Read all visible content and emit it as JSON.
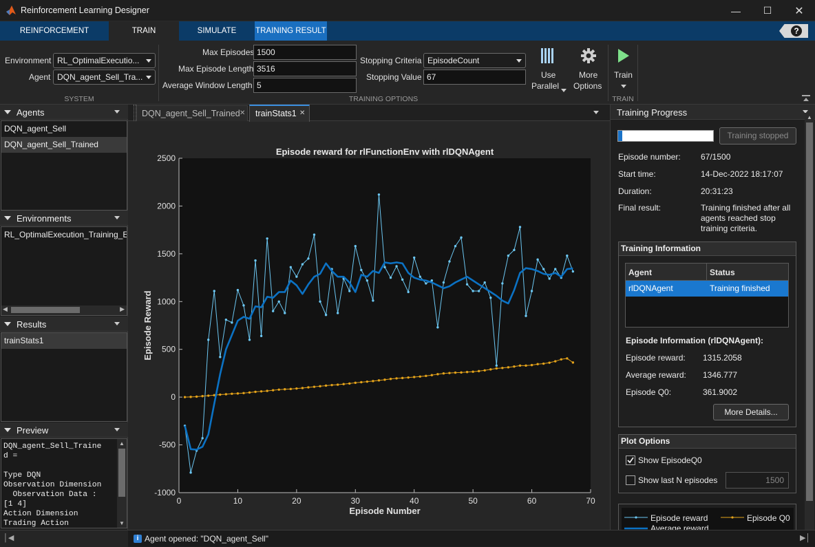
{
  "app": {
    "title": "Reinforcement Learning Designer"
  },
  "ribbon_tabs": [
    {
      "label": "REINFORCEMENT LEARNING"
    },
    {
      "label": "TRAIN"
    },
    {
      "label": "SIMULATE"
    },
    {
      "label": "TRAINING RESULT"
    }
  ],
  "system": {
    "environment_label": "Environment",
    "environment_value": "RL_OptimalExecutio...",
    "agent_label": "Agent",
    "agent_value": "DQN_agent_Sell_Tra...",
    "section_label": "SYSTEM"
  },
  "training_options": {
    "max_episodes_label": "Max Episodes",
    "max_episodes_value": "1500",
    "max_episode_length_label": "Max Episode Length",
    "max_episode_length_value": "3516",
    "avg_window_label": "Average Window Length",
    "avg_window_value": "5",
    "stopping_criteria_label": "Stopping Criteria",
    "stopping_criteria_value": "EpisodeCount",
    "stopping_value_label": "Stopping Value",
    "stopping_value_value": "67",
    "use_parallel_1": "Use",
    "use_parallel_2": "Parallel",
    "more_options_1": "More",
    "more_options_2": "Options",
    "section_label": "TRAINING OPTIONS"
  },
  "train_section": {
    "train_label": "Train",
    "section_label": "TRAIN"
  },
  "panels": {
    "agents": {
      "title": "Agents",
      "items": [
        "DQN_agent_Sell",
        "DQN_agent_Sell_Trained"
      ]
    },
    "environments": {
      "title": "Environments",
      "items": [
        "RL_OptimalExecution_Training_E"
      ]
    },
    "results": {
      "title": "Results",
      "items": [
        "trainStats1"
      ]
    },
    "preview": {
      "title": "Preview",
      "text": "DQN_agent_Sell_Traine\nd =\n\nType DQN\nObservation Dimension\n  Observation Data :\n[1 4]\nAction Dimension\nTrading Action"
    }
  },
  "doc_tabs": [
    {
      "label": "DQN_agent_Sell_Trained"
    },
    {
      "label": "trainStats1"
    }
  ],
  "status": {
    "text": "Agent opened: \"DQN_agent_Sell\""
  },
  "progress": {
    "title": "Training Progress",
    "progress_fraction": 0.045,
    "stopped_button": "Training stopped",
    "episode_number_label": "Episode number:",
    "episode_number_value": "67/1500",
    "start_time_label": "Start time:",
    "start_time_value": "14-Dec-2022 18:17:07",
    "duration_label": "Duration:",
    "duration_value": "20:31:23",
    "final_result_label": "Final result:",
    "final_result_lines": [
      "Training finished after all",
      "agents reached stop",
      "training criteria."
    ],
    "training_info_title": "Training Information",
    "table_headers": [
      "Agent",
      "Status"
    ],
    "table_rows": [
      [
        "rlDQNAgent",
        "Training finished"
      ]
    ],
    "episode_info_title": "Episode Information (rlDQNAgent):",
    "episode_reward_label": "Episode reward:",
    "episode_reward_value": "1315.2058",
    "average_reward_label": "Average reward:",
    "average_reward_value": "1346.777",
    "episode_q0_label": "Episode Q0:",
    "episode_q0_value": "361.9002",
    "more_details_button": "More Details...",
    "plot_options_title": "Plot Options",
    "show_q0_label": "Show EpisodeQ0",
    "show_q0_checked": true,
    "show_last_n_label": "Show last N episodes",
    "show_last_n_checked": false,
    "last_n_value": "1500"
  },
  "colors": {
    "accent": "#0b3b67",
    "tab_active": "#1a6fc0",
    "reward": "#6cc7f2",
    "average": "#0b72c4",
    "q0": "#e3a21a"
  },
  "chart_data": {
    "type": "line",
    "title": "Episode reward for rlFunctionEnv with rlDQNAgent",
    "xlabel": "Episode Number",
    "ylabel": "Episode Reward",
    "xlim": [
      0,
      70
    ],
    "ylim": [
      -1000,
      2500
    ],
    "xticks": [
      0,
      10,
      20,
      30,
      40,
      50,
      60,
      70
    ],
    "yticks": [
      -1000,
      -500,
      0,
      500,
      1000,
      1500,
      2000,
      2500
    ],
    "grid": false,
    "legend_position": "bottom",
    "x": [
      1,
      2,
      3,
      4,
      5,
      6,
      7,
      8,
      9,
      10,
      11,
      12,
      13,
      14,
      15,
      16,
      17,
      18,
      19,
      20,
      21,
      22,
      23,
      24,
      25,
      26,
      27,
      28,
      29,
      30,
      31,
      32,
      33,
      34,
      35,
      36,
      37,
      38,
      39,
      40,
      41,
      42,
      43,
      44,
      45,
      46,
      47,
      48,
      49,
      50,
      51,
      52,
      53,
      54,
      55,
      56,
      57,
      58,
      59,
      60,
      61,
      62,
      63,
      64,
      65,
      66,
      67
    ],
    "series": [
      {
        "name": "Episode reward",
        "values": [
          -300,
          -790,
          -560,
          -430,
          600,
          1110,
          420,
          810,
          780,
          1120,
          960,
          600,
          1430,
          640,
          1660,
          900,
          1000,
          880,
          1360,
          1260,
          1390,
          1450,
          1700,
          1000,
          860,
          1340,
          880,
          1240,
          1110,
          1580,
          1330,
          1220,
          1010,
          2120,
          1360,
          1250,
          1370,
          1230,
          1100,
          1460,
          1260,
          1190,
          1220,
          730,
          1200,
          1420,
          1580,
          1670,
          1180,
          1110,
          1110,
          1200,
          1040,
          330,
          1190,
          1480,
          1540,
          1780,
          850,
          1110,
          1440,
          1340,
          1240,
          1340,
          1250,
          1480,
          1315
        ]
      },
      {
        "name": "Average reward",
        "values": [
          -300,
          -545,
          -550,
          -520,
          -390,
          -70,
          240,
          500,
          650,
          800,
          840,
          820,
          950,
          940,
          1050,
          1040,
          1100,
          1100,
          1220,
          1170,
          1080,
          1180,
          1260,
          1290,
          1400,
          1320,
          1260,
          1260,
          1200,
          1100,
          1280,
          1260,
          1320,
          1300,
          1410,
          1400,
          1410,
          1400,
          1300,
          1250,
          1230,
          1220,
          1200,
          1170,
          1140,
          1160,
          1200,
          1230,
          1260,
          1220,
          1180,
          1140,
          1100,
          1060,
          1010,
          980,
          1120,
          1300,
          1350,
          1340,
          1320,
          1290,
          1280,
          1300,
          1260,
          1340,
          1347
        ]
      },
      {
        "name": "Episode Q0",
        "values": [
          0,
          2,
          5,
          10,
          15,
          20,
          26,
          30,
          35,
          38,
          42,
          48,
          55,
          60,
          65,
          72,
          78,
          82,
          85,
          90,
          95,
          102,
          108,
          114,
          120,
          126,
          130,
          136,
          142,
          150,
          156,
          162,
          168,
          175,
          182,
          190,
          196,
          200,
          205,
          210,
          215,
          222,
          230,
          240,
          248,
          252,
          256,
          258,
          262,
          266,
          272,
          280,
          290,
          300,
          305,
          312,
          320,
          330,
          330,
          335,
          345,
          350,
          360,
          375,
          395,
          405,
          362
        ]
      }
    ]
  }
}
